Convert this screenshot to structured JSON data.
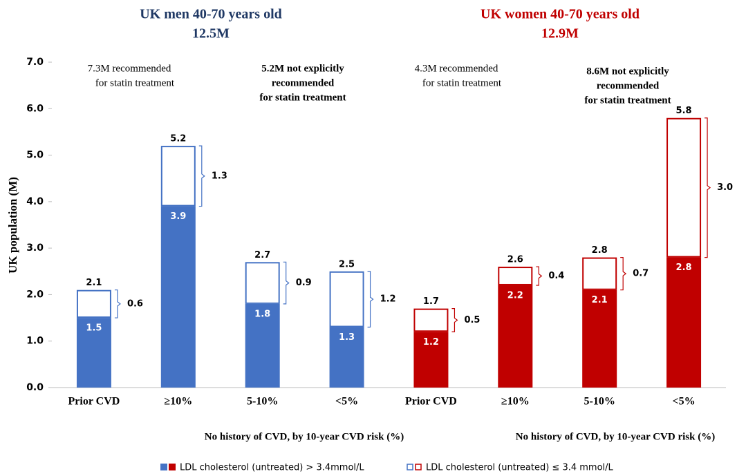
{
  "chart_data": {
    "type": "bar",
    "stacked": true,
    "y_label": "UK population (M)",
    "groups": [
      {
        "title": "UK men 40-70 years old",
        "subtitle": "12.5M",
        "color": "#1f3864",
        "x_label": "No history of CVD, by 10-year CVD risk (%)"
      },
      {
        "title": "UK women 40-70 years old",
        "subtitle": "12.9M",
        "color": "#c00000",
        "x_label": "No history of CVD, by 10-year CVD risk (%)"
      }
    ],
    "categories": [
      "Prior CVD",
      "≥10%",
      "5-10%",
      "<5%",
      "Prior CVD",
      "≥10%",
      "5-10%",
      "<5%"
    ],
    "colors": [
      "#4472c4",
      "#4472c4",
      "#4472c4",
      "#4472c4",
      "#c00000",
      "#c00000",
      "#c00000",
      "#c00000"
    ],
    "series": [
      {
        "name": "LDL cholesterol (untreated) > 3.4mmol/L",
        "filled": true,
        "values": [
          1.5,
          3.9,
          1.8,
          1.3,
          1.2,
          2.2,
          2.1,
          2.8
        ]
      },
      {
        "name": "LDL cholesterol (untreated) ≤ 3.4 mmol/L",
        "filled": false,
        "values": [
          0.6,
          1.3,
          0.9,
          1.2,
          0.5,
          0.4,
          0.7,
          3.0
        ],
        "value_labels": [
          "0.6",
          "1.3",
          "0.9",
          "1.2",
          "0.5",
          "0.4",
          "0.7",
          "3.0"
        ]
      }
    ],
    "total_labels": [
      "2.1",
      "5.2",
      "2.7",
      "2.5",
      "1.7",
      "2.6",
      "2.8",
      "5.8"
    ],
    "annotations": [
      {
        "lines": [
          "7.3M recommended",
          "for statin treatment"
        ],
        "bold": false
      },
      {
        "lines": [
          "5.2M not explicitly",
          "recommended",
          "for statin treatment"
        ],
        "bold": true
      },
      {
        "lines": [
          "4.3M recommended",
          "for statin treatment"
        ],
        "bold": false
      },
      {
        "lines": [
          "8.6M not explicitly",
          "recommended",
          "for statin treatment"
        ],
        "bold": true
      }
    ],
    "ylim": [
      0,
      7
    ],
    "yticks": [
      {
        "value": 0,
        "label": "0.0"
      },
      {
        "value": 1,
        "label": "1.0"
      },
      {
        "value": 2,
        "label": "2.0"
      },
      {
        "value": 3,
        "label": "3.0"
      },
      {
        "value": 4,
        "label": "4.0"
      },
      {
        "value": 5,
        "label": "5.0"
      },
      {
        "value": 6,
        "label": "6.0"
      },
      {
        "value": 7,
        "label": "7.0"
      }
    ]
  }
}
